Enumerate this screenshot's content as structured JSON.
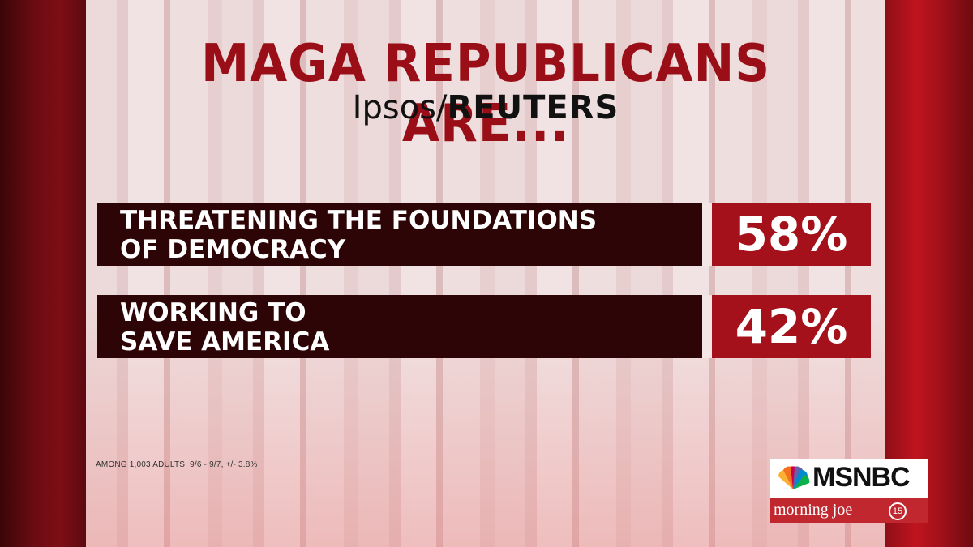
{
  "title": "MAGA REPUBLICANS ARE...",
  "source": {
    "brand1": "Ipsos",
    "sep": "/",
    "brand2": "REUTERS"
  },
  "rows": [
    {
      "label_line1": "THREATENING THE FOUNDATIONS",
      "label_line2": "OF DEMOCRACY",
      "value": "58%"
    },
    {
      "label_line1": "WORKING TO",
      "label_line2": "SAVE AMERICA",
      "value": "42%"
    }
  ],
  "footnote": "AMONG 1,003 ADULTS, 9/6 - 9/7, +/- 3.8%",
  "logo": {
    "network": "MSNBC",
    "show": "morning joe",
    "badge": "15"
  },
  "colors": {
    "title": "#9a0f17",
    "label_bg": "#2e0507",
    "value_bg": "#a5111a",
    "frame_red": "#c0141f"
  }
}
